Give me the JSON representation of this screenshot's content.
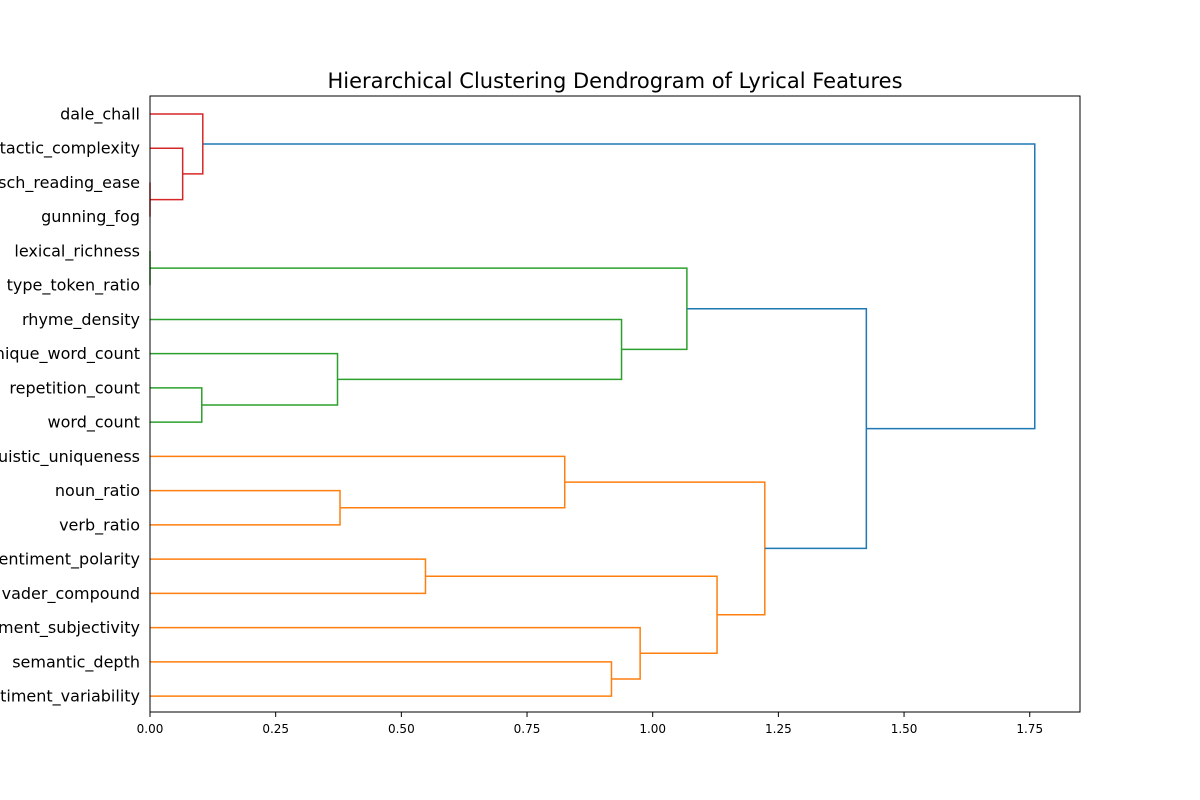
{
  "chart_data": {
    "type": "dendrogram",
    "title": "Hierarchical Clustering Dendrogram of Lyrical Features",
    "orientation": "horizontal",
    "xlim": [
      0,
      1.85
    ],
    "xticks": [
      0.0,
      0.25,
      0.5,
      0.75,
      1.0,
      1.25,
      1.5,
      1.75
    ],
    "xtick_labels": [
      "0.00",
      "0.25",
      "0.50",
      "0.75",
      "1.00",
      "1.25",
      "1.50",
      "1.75"
    ],
    "grid": false,
    "leaves": [
      "dale_chall",
      "syntactic_complexity",
      "flesch_reading_ease",
      "gunning_fog",
      "lexical_richness",
      "type_token_ratio",
      "rhyme_density",
      "unique_word_count",
      "repetition_count",
      "word_count",
      "linguistic_uniqueness",
      "noun_ratio",
      "verb_ratio",
      "sentiment_polarity",
      "vader_compound",
      "sentiment_subjectivity",
      "semantic_depth",
      "sentiment_variability"
    ],
    "colors": {
      "red": "#d62728",
      "green": "#2ca02c",
      "orange": "#ff7f0e",
      "blue": "#1f77b4"
    },
    "merges": [
      {
        "a": "gunning_fog",
        "b": "flesch_reading_ease",
        "height": 0.0,
        "color": "red"
      },
      {
        "a": "syntactic_complexity",
        "b": "m0",
        "height": 0.065,
        "color": "red"
      },
      {
        "a": "dale_chall",
        "b": "m1",
        "height": 0.105,
        "color": "red"
      },
      {
        "a": "lexical_richness",
        "b": "type_token_ratio",
        "height": 0.0,
        "color": "green"
      },
      {
        "a": "repetition_count",
        "b": "word_count",
        "height": 0.103,
        "color": "green"
      },
      {
        "a": "unique_word_count",
        "b": "m4",
        "height": 0.373,
        "color": "green"
      },
      {
        "a": "rhyme_density",
        "b": "m5",
        "height": 0.938,
        "color": "green"
      },
      {
        "a": "m3",
        "b": "m6",
        "height": 1.068,
        "color": "green"
      },
      {
        "a": "noun_ratio",
        "b": "verb_ratio",
        "height": 0.378,
        "color": "orange"
      },
      {
        "a": "linguistic_uniqueness",
        "b": "m8",
        "height": 0.825,
        "color": "orange"
      },
      {
        "a": "sentiment_polarity",
        "b": "vader_compound",
        "height": 0.548,
        "color": "orange"
      },
      {
        "a": "semantic_depth",
        "b": "sentiment_variability",
        "height": 0.918,
        "color": "orange"
      },
      {
        "a": "sentiment_subjectivity",
        "b": "m11",
        "height": 0.975,
        "color": "orange"
      },
      {
        "a": "m10",
        "b": "m12",
        "height": 1.128,
        "color": "orange"
      },
      {
        "a": "m9",
        "b": "m13",
        "height": 1.223,
        "color": "orange"
      },
      {
        "a": "m7",
        "b": "m14",
        "height": 1.425,
        "color": "blue"
      },
      {
        "a": "m2",
        "b": "m15",
        "height": 1.76,
        "color": "blue"
      }
    ]
  }
}
